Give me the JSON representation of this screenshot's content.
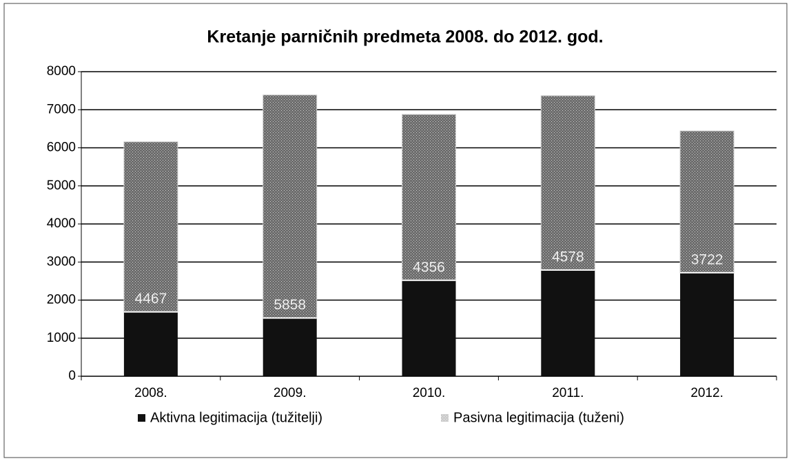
{
  "chart_data": {
    "type": "stacked_bar",
    "title": "Kretanje  parničnih predmeta 2008. do 2012. god.",
    "categories": [
      "2008.",
      "2009.",
      "2010.",
      "2011.",
      "2012."
    ],
    "series": [
      {
        "name": "Aktivna legitimacija (tužitelji)",
        "color": "#111111",
        "values": [
          1690,
          1530,
          2520,
          2790,
          2720
        ]
      },
      {
        "name": "Pasivna legitimacija (tuženi)",
        "color": "#8a8a8a",
        "values": [
          4467,
          5858,
          4356,
          4578,
          3722
        ]
      }
    ],
    "labeled_series": 1,
    "ylim": [
      0,
      8000
    ],
    "yticks": [
      0,
      1000,
      2000,
      3000,
      4000,
      5000,
      6000,
      7000,
      8000
    ],
    "grid": true
  }
}
